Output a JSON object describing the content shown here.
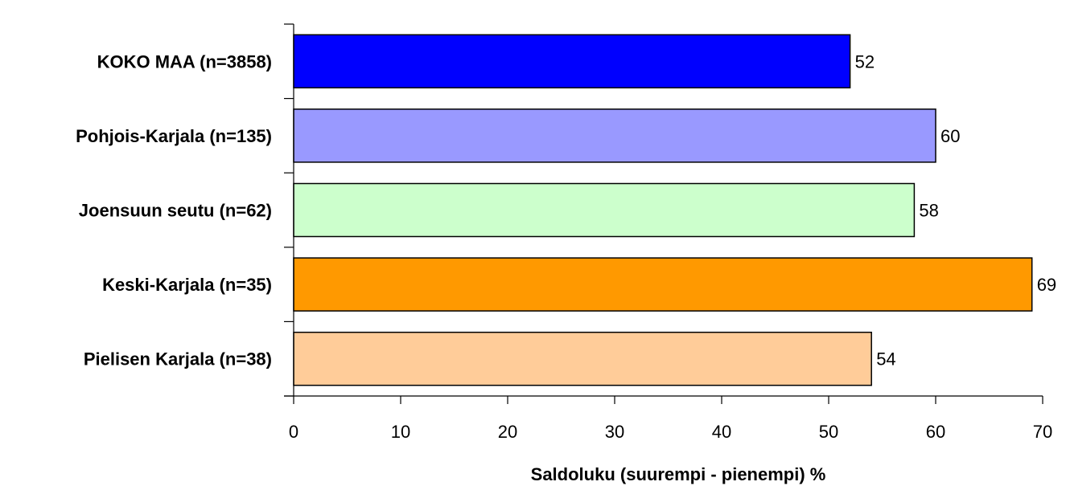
{
  "chart_data": {
    "type": "bar",
    "orientation": "horizontal",
    "categories": [
      "KOKO MAA (n=3858)",
      "Pohjois-Karjala (n=135)",
      "Joensuun seutu (n=62)",
      "Keski-Karjala (n=35)",
      "Pielisen Karjala (n=38)"
    ],
    "values": [
      52,
      60,
      58,
      69,
      54
    ],
    "value_labels": [
      "52",
      "60",
      "58",
      "69",
      "54"
    ],
    "bar_colors": [
      "#0000ff",
      "#9999ff",
      "#ccffcc",
      "#ff9900",
      "#ffcc99"
    ],
    "xlabel": "Saldoluku (suurempi - pienempi) %",
    "ylabel": "",
    "xlim": [
      0,
      70
    ],
    "x_ticks": [
      "0",
      "10",
      "20",
      "30",
      "40",
      "50",
      "60",
      "70"
    ],
    "grid": false,
    "legend": "none"
  }
}
